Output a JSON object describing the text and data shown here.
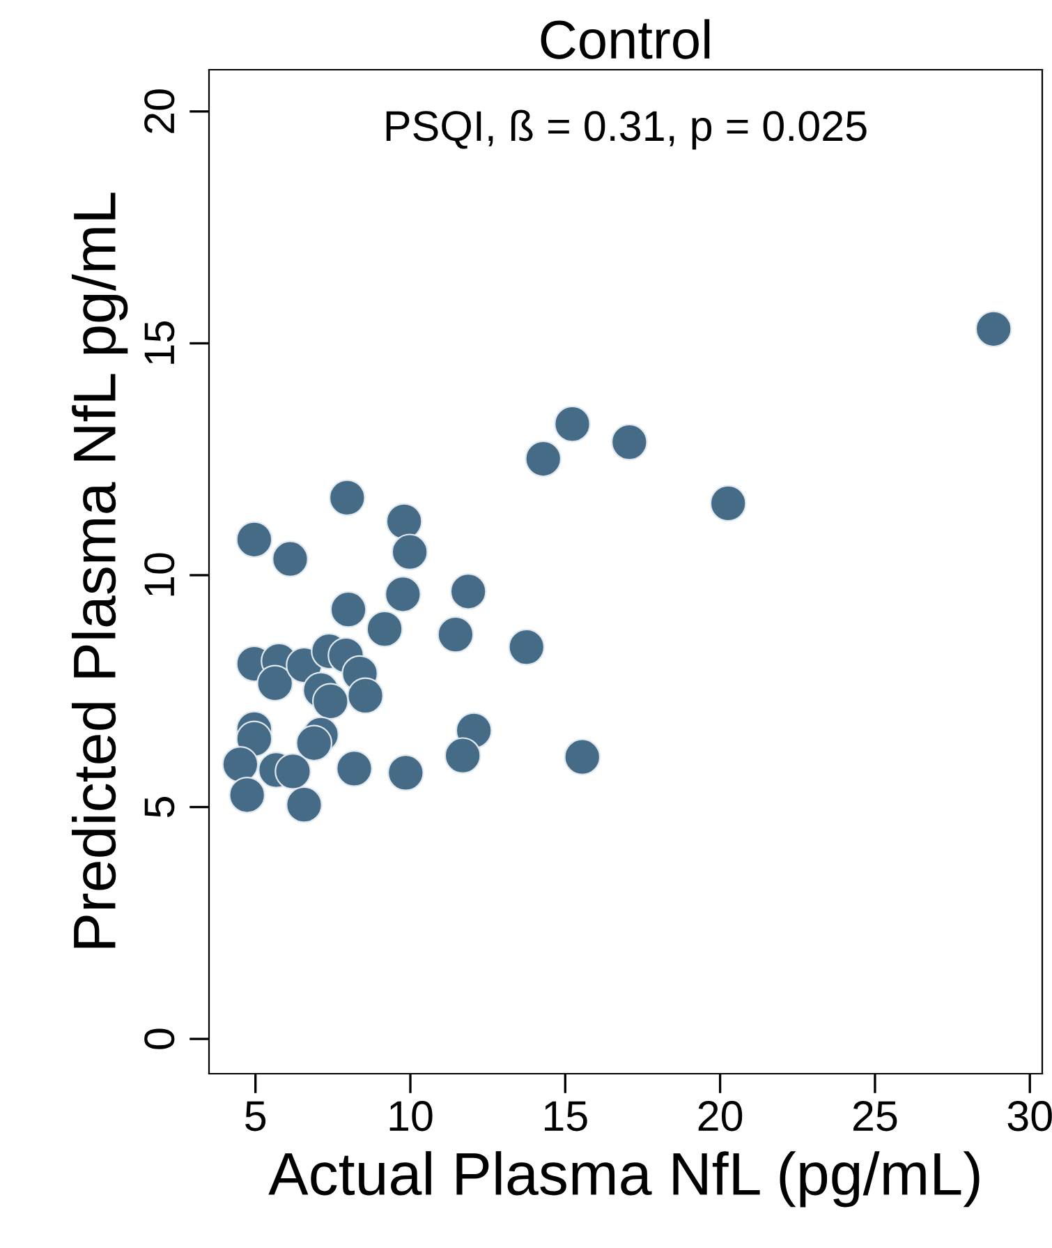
{
  "chart_data": {
    "type": "scatter",
    "title": "Control",
    "xlabel": "Actual Plasma NfL (pg/mL)",
    "ylabel": "Predicted Plasma NfL pg/mL",
    "annotations": [
      "PSQI, ß = 0.31, p = 0.025"
    ],
    "x": [
      7.96,
      4.96,
      6.12,
      9.8,
      9.98,
      9.76,
      11.87,
      8.0,
      9.17,
      11.46,
      13.75,
      4.96,
      5.76,
      5.63,
      6.57,
      7.38,
      7.92,
      8.37,
      8.55,
      7.11,
      7.42,
      4.96,
      4.96,
      7.11,
      6.89,
      4.51,
      4.73,
      5.67,
      6.21,
      6.57,
      8.19,
      9.85,
      12.05,
      11.69,
      15.55,
      14.29,
      17.07,
      15.23,
      20.26,
      28.83
    ],
    "values": [
      11.67,
      10.77,
      10.35,
      11.16,
      10.5,
      9.59,
      9.65,
      9.26,
      8.84,
      8.72,
      8.45,
      8.09,
      8.15,
      7.67,
      8.06,
      8.36,
      8.27,
      7.88,
      7.4,
      7.52,
      7.28,
      6.68,
      6.47,
      6.56,
      6.38,
      5.92,
      5.26,
      5.8,
      5.77,
      5.05,
      5.83,
      5.74,
      6.65,
      6.11,
      6.08,
      12.51,
      12.87,
      13.26,
      11.55,
      15.31
    ],
    "color": "#456b87",
    "marker": "circle",
    "grid": false,
    "xlim": [
      3.5,
      30.4
    ],
    "xticks": [
      5,
      10,
      15,
      20,
      25,
      30
    ],
    "ylim": [
      -0.75,
      20.9
    ],
    "yticks": [
      0,
      5,
      10,
      15,
      20
    ]
  }
}
